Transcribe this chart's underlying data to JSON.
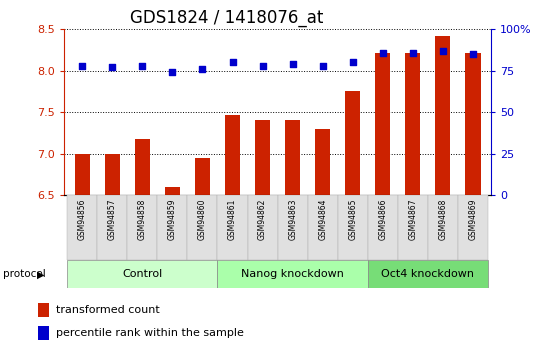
{
  "title": "GDS1824 / 1418076_at",
  "samples": [
    "GSM94856",
    "GSM94857",
    "GSM94858",
    "GSM94859",
    "GSM94860",
    "GSM94861",
    "GSM94862",
    "GSM94863",
    "GSM94864",
    "GSM94865",
    "GSM94866",
    "GSM94867",
    "GSM94868",
    "GSM94869"
  ],
  "red_values": [
    7.0,
    7.0,
    7.17,
    6.6,
    6.95,
    7.47,
    7.4,
    7.4,
    7.3,
    7.75,
    8.22,
    8.22,
    8.42,
    8.22
  ],
  "blue_values": [
    78,
    77,
    78,
    74,
    76,
    80,
    78,
    79,
    78,
    80,
    86,
    86,
    87,
    85
  ],
  "ylim_left": [
    6.5,
    8.5
  ],
  "ylim_right": [
    0,
    100
  ],
  "yticks_left": [
    6.5,
    7.0,
    7.5,
    8.0,
    8.5
  ],
  "yticks_right": [
    0,
    25,
    50,
    75,
    100
  ],
  "groups": [
    {
      "label": "Control",
      "start": 0,
      "end": 5,
      "color": "#ccffcc"
    },
    {
      "label": "Nanog knockdown",
      "start": 5,
      "end": 10,
      "color": "#aaffaa"
    },
    {
      "label": "Oct4 knockdown",
      "start": 10,
      "end": 14,
      "color": "#77dd77"
    }
  ],
  "bar_color": "#cc2200",
  "dot_color": "#0000cc",
  "bar_width": 0.5,
  "protocol_label": "protocol",
  "legend_red": "transformed count",
  "legend_blue": "percentile rank within the sample",
  "axis_color_left": "#cc2200",
  "axis_color_right": "#0000cc",
  "title_fontsize": 12,
  "tick_fontsize": 8,
  "sample_fontsize": 5.5,
  "group_fontsize": 8,
  "legend_fontsize": 8
}
